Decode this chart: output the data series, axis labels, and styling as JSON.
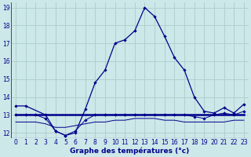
{
  "xlabel": "Graphe des températures (°c)",
  "bg_color": "#cce8e8",
  "grid_color": "#b0d0d0",
  "line_color": "#00008b",
  "xlim": [
    -0.5,
    23.5
  ],
  "ylim": [
    11.7,
    19.3
  ],
  "yticks": [
    12,
    13,
    14,
    15,
    16,
    17,
    18,
    19
  ],
  "xticks": [
    0,
    1,
    2,
    3,
    4,
    5,
    6,
    7,
    8,
    9,
    10,
    11,
    12,
    13,
    14,
    15,
    16,
    17,
    18,
    19,
    20,
    21,
    22,
    23
  ],
  "hours": [
    0,
    1,
    2,
    3,
    4,
    5,
    6,
    7,
    8,
    9,
    10,
    11,
    12,
    13,
    14,
    15,
    16,
    17,
    18,
    19,
    20,
    21,
    22,
    23
  ],
  "line_main": [
    13.5,
    13.5,
    null,
    13.0,
    12.1,
    11.85,
    12.0,
    13.3,
    14.8,
    15.5,
    17.0,
    17.2,
    17.7,
    19.0,
    18.5,
    17.4,
    16.2,
    15.5,
    14.0,
    13.2,
    13.1,
    13.4,
    13.1,
    13.6
  ],
  "line_mean": [
    13.0,
    13.0,
    13.0,
    13.0,
    13.0,
    13.0,
    13.0,
    13.0,
    13.0,
    13.0,
    13.0,
    13.0,
    13.0,
    13.0,
    13.0,
    13.0,
    13.0,
    13.0,
    13.0,
    13.0,
    13.0,
    13.0,
    13.0,
    13.0
  ],
  "line_min": [
    12.6,
    12.6,
    12.6,
    12.5,
    12.3,
    12.3,
    12.4,
    12.5,
    12.6,
    12.6,
    12.7,
    12.7,
    12.8,
    12.8,
    12.8,
    12.7,
    12.7,
    12.6,
    12.6,
    12.6,
    12.6,
    12.6,
    12.7,
    12.7
  ],
  "line_dip": [
    13.0,
    13.0,
    13.0,
    12.8,
    12.1,
    11.85,
    12.1,
    12.7,
    13.0,
    13.0,
    13.0,
    13.0,
    13.0,
    13.0,
    13.0,
    13.0,
    13.0,
    13.0,
    12.9,
    12.8,
    13.0,
    13.1,
    13.0,
    13.2
  ]
}
